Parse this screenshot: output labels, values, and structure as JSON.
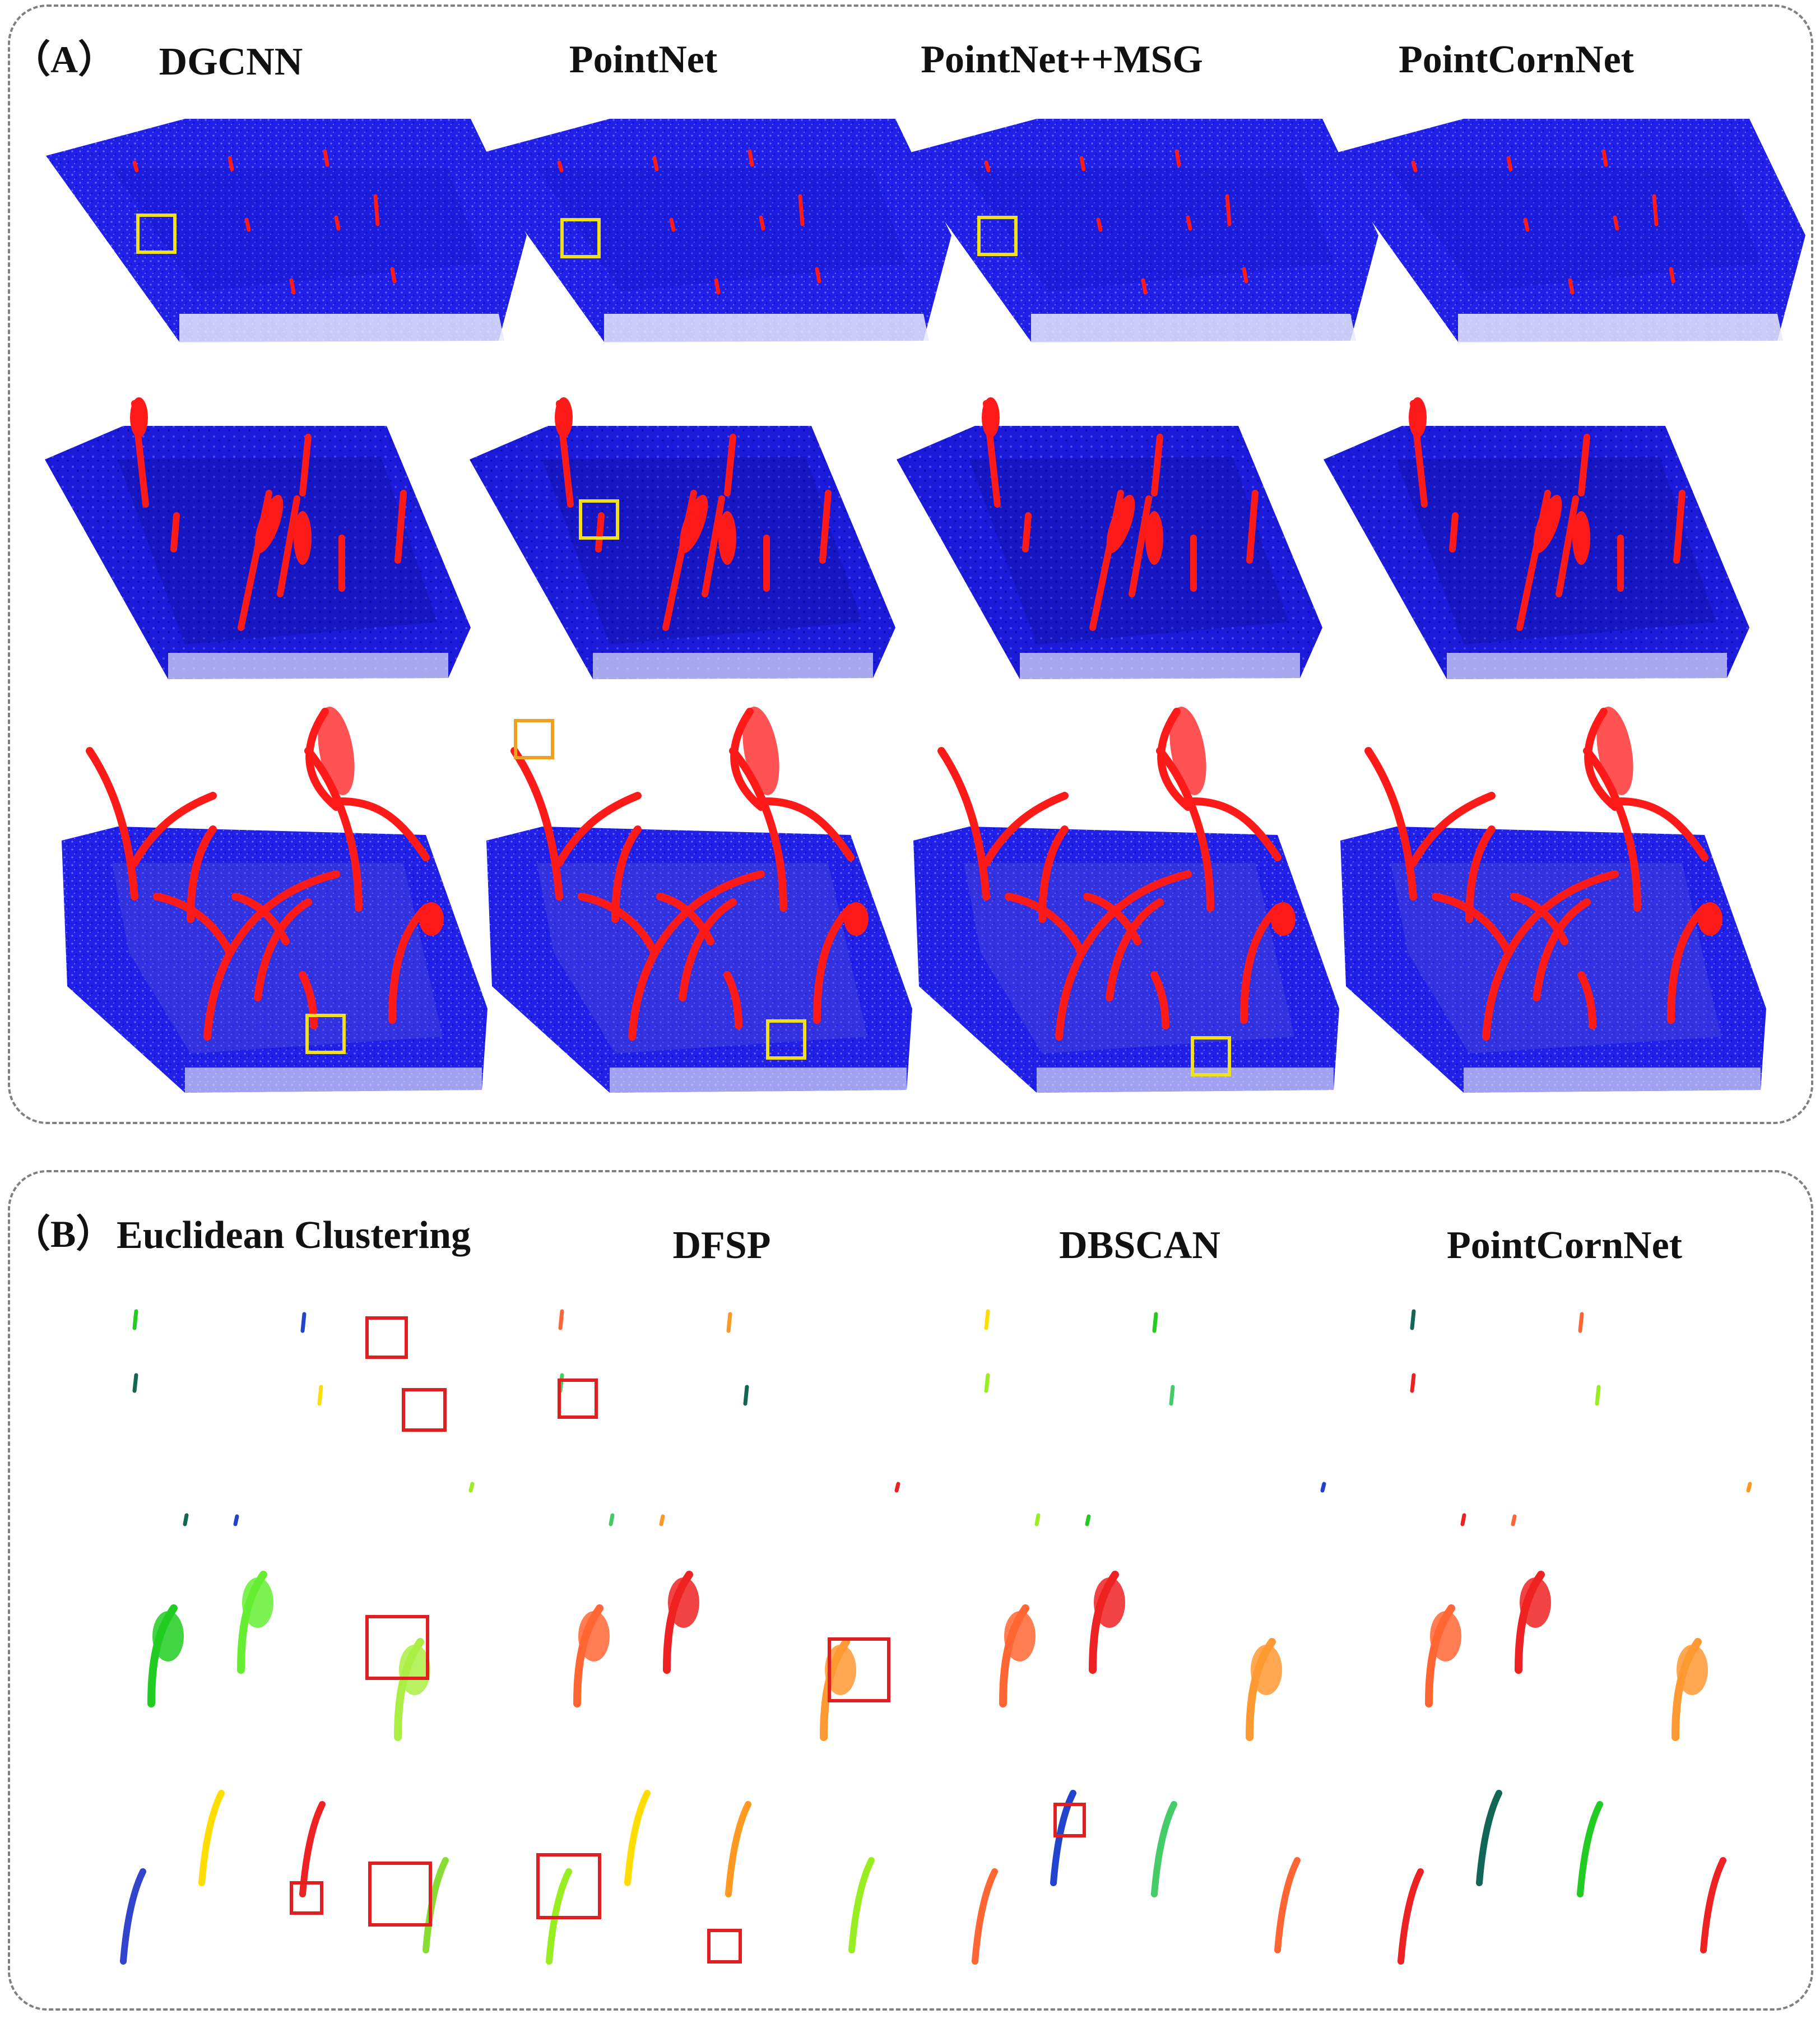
{
  "panel_a": {
    "label": "（A）",
    "columns": [
      "DGCNN",
      "PointNet",
      "PointNet++MSG",
      "PointCornNet"
    ]
  },
  "panel_b": {
    "label": "（B）",
    "columns": [
      "Euclidean Clustering",
      "DFSP",
      "DBSCAN",
      "PointCornNet"
    ]
  },
  "colors": {
    "soil_points": "#1f1fe6",
    "plant_points": "#ff1a1a",
    "highlight_a": "#f0e020",
    "highlight_orange": "#f0a020",
    "highlight_b": "#e02020",
    "panel_border": "#808080"
  }
}
